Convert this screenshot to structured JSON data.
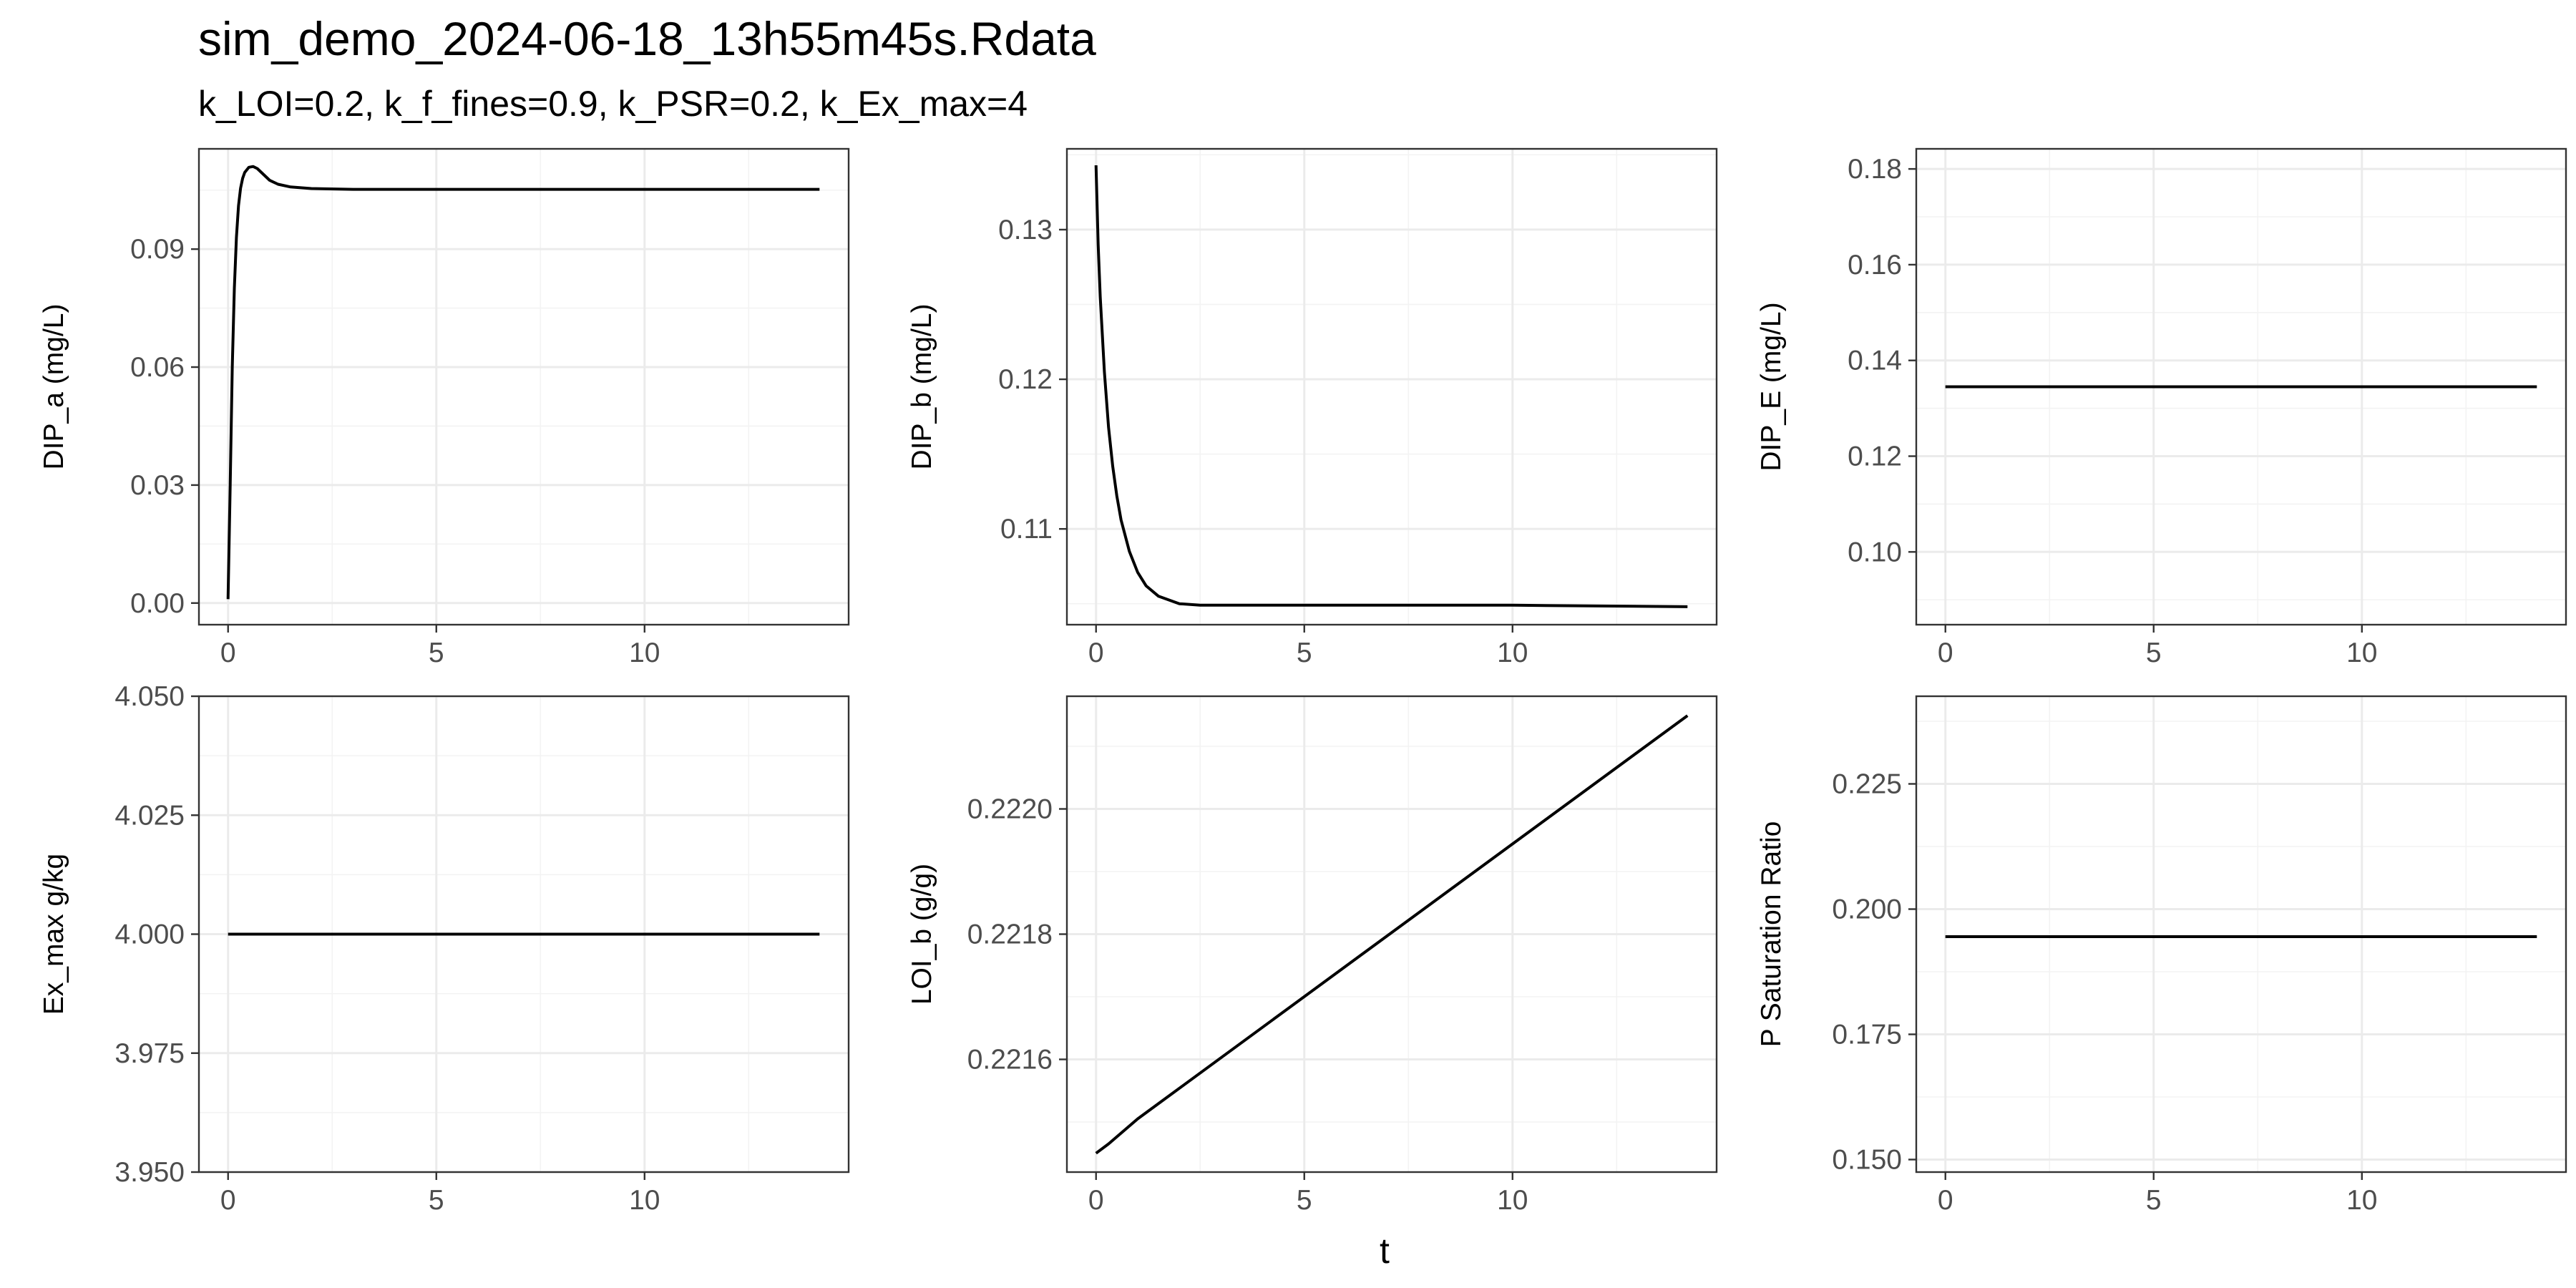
{
  "figure": {
    "title": "sim_demo_2024-06-18_13h55m45s.Rdata",
    "subtitle": "k_LOI=0.2, k_f_fines=0.9, k_PSR=0.2, k_Ex_max=4",
    "xlabel": "t"
  },
  "chart_data": [
    {
      "type": "line",
      "ylabel": "DIP_a (mg/L)",
      "xlim": [
        -0.7,
        14.9
      ],
      "ylim": [
        -0.0055,
        0.1155
      ],
      "xticks": [
        0,
        5,
        10
      ],
      "yticks": [
        0.0,
        0.03,
        0.06,
        0.09
      ],
      "ytick_labels": [
        "0.00",
        "0.03",
        "0.06",
        "0.09"
      ],
      "grid": true,
      "series": [
        {
          "x": [
            0,
            0.05,
            0.1,
            0.15,
            0.2,
            0.25,
            0.3,
            0.35,
            0.4,
            0.5,
            0.6,
            0.7,
            0.8,
            0.9,
            1.0,
            1.2,
            1.5,
            2.0,
            3.0,
            5.0,
            8.0,
            14.2
          ],
          "y": [
            0.001,
            0.03,
            0.06,
            0.08,
            0.093,
            0.101,
            0.1055,
            0.108,
            0.1095,
            0.1108,
            0.111,
            0.1105,
            0.1095,
            0.1085,
            0.1075,
            0.1065,
            0.1058,
            0.1054,
            0.1052,
            0.1052,
            0.1052,
            0.1052
          ]
        }
      ]
    },
    {
      "type": "line",
      "ylabel": "DIP_b (mg/L)",
      "xlim": [
        -0.7,
        14.9
      ],
      "ylim": [
        0.1036,
        0.1354
      ],
      "xticks": [
        0,
        5,
        10
      ],
      "yticks": [
        0.11,
        0.12,
        0.13
      ],
      "ytick_labels": [
        "0.11",
        "0.12",
        "0.13"
      ],
      "grid": true,
      "series": [
        {
          "x": [
            0,
            0.05,
            0.1,
            0.2,
            0.3,
            0.4,
            0.5,
            0.6,
            0.8,
            1.0,
            1.2,
            1.5,
            2.0,
            2.5,
            3.0,
            4.0,
            6.0,
            10.0,
            14.2
          ],
          "y": [
            0.1343,
            0.129,
            0.1255,
            0.1205,
            0.1168,
            0.1142,
            0.1122,
            0.1106,
            0.1085,
            0.1071,
            0.1062,
            0.1055,
            0.105,
            0.1049,
            0.1049,
            0.1049,
            0.1049,
            0.1049,
            0.1048
          ]
        }
      ]
    },
    {
      "type": "line",
      "ylabel": "DIP_E (mg/L)",
      "xlim": [
        -0.7,
        14.9
      ],
      "ylim": [
        0.0848,
        0.1842
      ],
      "xticks": [
        0,
        5,
        10
      ],
      "yticks": [
        0.1,
        0.12,
        0.14,
        0.16,
        0.18
      ],
      "ytick_labels": [
        "0.10",
        "0.12",
        "0.14",
        "0.16",
        "0.18"
      ],
      "grid": true,
      "series": [
        {
          "x": [
            0,
            14.2
          ],
          "y": [
            0.1345,
            0.1345
          ]
        }
      ]
    },
    {
      "type": "line",
      "ylabel": "Ex_max g/kg",
      "xlim": [
        -0.7,
        14.9
      ],
      "ylim": [
        3.95,
        4.05
      ],
      "xticks": [
        0,
        5,
        10
      ],
      "yticks": [
        3.95,
        3.975,
        4.0,
        4.025,
        4.05
      ],
      "ytick_labels": [
        "3.950",
        "3.975",
        "4.000",
        "4.025",
        "4.050"
      ],
      "grid": true,
      "series": [
        {
          "x": [
            0,
            14.2
          ],
          "y": [
            4.0,
            4.0
          ]
        }
      ]
    },
    {
      "type": "line",
      "ylabel": "LOI_b (g/g)",
      "xlim": [
        -0.7,
        14.9
      ],
      "ylim": [
        0.22142,
        0.22218
      ],
      "xticks": [
        0,
        5,
        10
      ],
      "yticks": [
        0.2216,
        0.2218,
        0.222
      ],
      "ytick_labels": [
        "0.2216",
        "0.2218",
        "0.2220"
      ],
      "grid": true,
      "series": [
        {
          "x": [
            0,
            0.3,
            1.0,
            14.2
          ],
          "y": [
            0.22145,
            0.221465,
            0.221505,
            0.222149
          ]
        }
      ]
    },
    {
      "type": "line",
      "ylabel": "P Saturation Ratio",
      "xlim": [
        -0.7,
        14.9
      ],
      "ylim": [
        0.1475,
        0.2425
      ],
      "xticks": [
        0,
        5,
        10
      ],
      "yticks": [
        0.15,
        0.175,
        0.2,
        0.225
      ],
      "ytick_labels": [
        "0.150",
        "0.175",
        "0.200",
        "0.225"
      ],
      "grid": true,
      "series": [
        {
          "x": [
            0,
            14.2
          ],
          "y": [
            0.1945,
            0.1945
          ]
        }
      ]
    }
  ]
}
